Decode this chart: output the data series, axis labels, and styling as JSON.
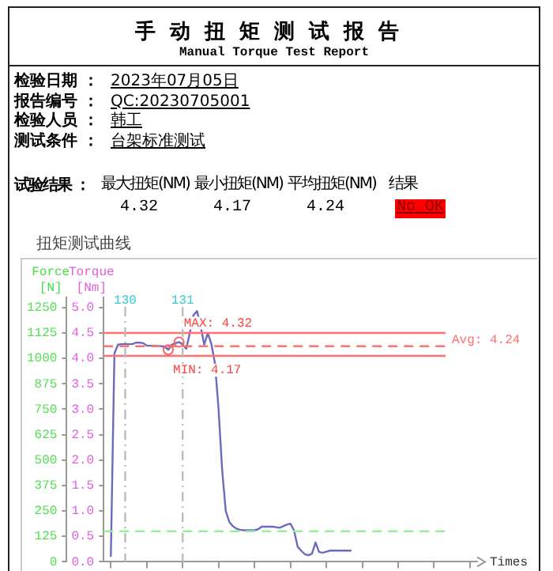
{
  "chart_data": {
    "type": "line",
    "title": "手动扭矩测试报告",
    "subtitle": "Manual Torque Test Report",
    "ylabel": "Torque\n[Nm]",
    "y2label": "Force\n[N]",
    "xlabel": "Times",
    "annotations": [
      "检验日期 ：",
      "2023年07月05日",
      "报告编号 ：",
      "QC:20230705001",
      "检验人员 ：",
      "韩工",
      "测试条件 ：",
      "台架标准测试",
      "试验结果 ：",
      "最大扭矩(NM)",
      "最小扭矩(NM)",
      "平均扭矩(NM)",
      "结果",
      "4.32",
      "4.17",
      "4.24",
      "No OK",
      "扭矩测试曲线",
      "130",
      "131",
      {
        "text": "MAX: 4.32",
        "y": 4.32
      },
      {
        "text": "MIN: 4.17",
        "y": 4.17
      }
    ],
    "categories": [
      null,
      null,
      null,
      null,
      null,
      null,
      null,
      null,
      null,
      null,
      null,
      null,
      null,
      null,
      null,
      null,
      null,
      null,
      null,
      null,
      null,
      null,
      null,
      null,
      null,
      null,
      null,
      null,
      null,
      null,
      null,
      null,
      null,
      null,
      null,
      null,
      null,
      null,
      null,
      null,
      null,
      null,
      null,
      null,
      null,
      null,
      null,
      null,
      null,
      null,
      null,
      null,
      null,
      null,
      null,
      null,
      null,
      null,
      null,
      null,
      null,
      null,
      null,
      null,
      null,
      null,
      null,
      null,
      null,
      null,
      null,
      null,
      null,
      null,
      null,
      null,
      null,
      null,
      null,
      null,
      null,
      null,
      null,
      null,
      null,
      null,
      null,
      null,
      null,
      null,
      null,
      null,
      null,
      null,
      null,
      null,
      null,
      null,
      null,
      null,
      null,
      null,
      null,
      null,
      null
    ],
    "series": [
      {
        "color": "#6a6abf",
        "values": [
          null,
          null,
          0.1,
          4.1,
          4.27,
          4.28,
          4.28,
          4.28,
          4.28,
          4.31,
          4.31,
          4.3,
          4.25,
          4.25,
          4.25,
          4.24,
          4.24,
          4.23,
          4.17,
          4.27,
          4.3,
          4.32,
          4.27,
          4.19,
          4.5,
          4.85,
          4.93,
          4.63,
          4.27,
          4.5,
          4.28,
          3.9,
          3.0,
          1.8,
          1.0,
          0.78,
          0.7,
          0.65,
          0.63,
          0.62,
          0.62,
          0.62,
          0.62,
          0.64,
          0.69,
          0.69,
          0.69,
          0.69,
          0.68,
          0.67,
          0.7,
          0.73,
          0.75,
          0.62,
          0.3,
          0.22,
          0.15,
          0.13,
          0.16,
          0.38,
          0.19,
          0.18,
          0.2,
          0.22,
          0.22,
          0.22,
          0.22,
          0.22,
          0.22,
          0.22,
          null,
          null,
          null,
          null,
          null,
          null,
          null,
          null,
          null,
          null,
          null,
          null,
          null,
          null,
          null,
          null,
          null,
          null,
          null,
          null,
          null,
          null,
          null,
          null,
          null,
          null,
          null,
          null,
          null,
          null,
          null,
          null,
          null,
          null,
          null
        ]
      }
    ],
    "ylim": [
      0,
      5.2
    ],
    "yticks": [
      {
        "value": 0,
        "label": "0.0"
      },
      0.5,
      {
        "value": 1,
        "label": "1.0"
      },
      1.5,
      {
        "value": 2,
        "label": "2.0"
      },
      2.5,
      {
        "value": 3,
        "label": "3.0"
      },
      3.5,
      {
        "value": 4,
        "label": "4.0"
      },
      4.5,
      {
        "value": 5,
        "label": "5.0"
      }
    ],
    "y2lim": [
      0,
      1300
    ],
    "y2ticks": [
      0,
      125,
      250,
      375,
      500,
      625,
      750,
      875,
      1000,
      1125,
      1250
    ],
    "ref_lines": [
      {
        "axis": "y",
        "value": 4.5,
        "color": "#ff7070",
        "line_style": "solid"
      },
      {
        "axis": "y",
        "value": 4.05,
        "color": "#ff7070",
        "line_style": "solid"
      },
      {
        "axis": "y",
        "value": 4.24,
        "label": "Avg: 4.24",
        "color": "#ff7070",
        "line_style": "dashed"
      },
      {
        "axis": "y",
        "value": 0.6,
        "color": "#99ee99",
        "line_style": "dashed"
      }
    ],
    "grid": false,
    "legend": false,
    "marker": "none",
    "line_style": "solid",
    "tick_labels": "y"
  }
}
